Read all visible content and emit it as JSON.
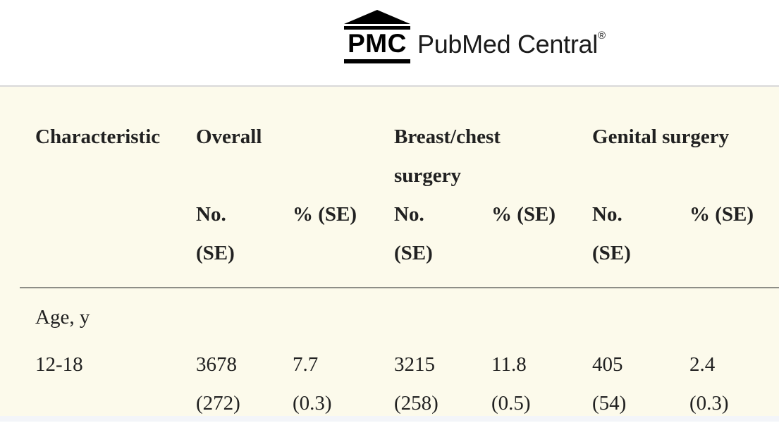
{
  "header": {
    "logo": {
      "acronym": "PMC",
      "wordmark": "PubMed Central",
      "registered_mark": "®"
    }
  },
  "table": {
    "column_headers": {
      "characteristic": "Characteristic",
      "overall": "Overall",
      "breast_chest": "Breast/chest surgery",
      "genital": "Genital surgery"
    },
    "subheaders": {
      "no_line1": "No.",
      "no_line2": "(SE)",
      "pct": "% (SE)"
    },
    "rows": [
      {
        "type": "section",
        "label": "Age, y"
      },
      {
        "type": "data",
        "label": "12-18",
        "cells": [
          {
            "value": "3678",
            "se": "(272)"
          },
          {
            "value": "7.7",
            "se": "(0.3)"
          },
          {
            "value": "3215",
            "se": "(258)"
          },
          {
            "value": "11.8",
            "se": "(0.5)"
          },
          {
            "value": "405",
            "se": "(54)"
          },
          {
            "value": "2.4",
            "se": "(0.3)"
          }
        ]
      }
    ]
  },
  "colors": {
    "table_background": "#fcfaeb",
    "header_divider": "#d9d9d9",
    "table_rule": "#8e8e87",
    "text": "#212121",
    "bottom_strip": "#f3f5f9",
    "logo": "#000000"
  }
}
